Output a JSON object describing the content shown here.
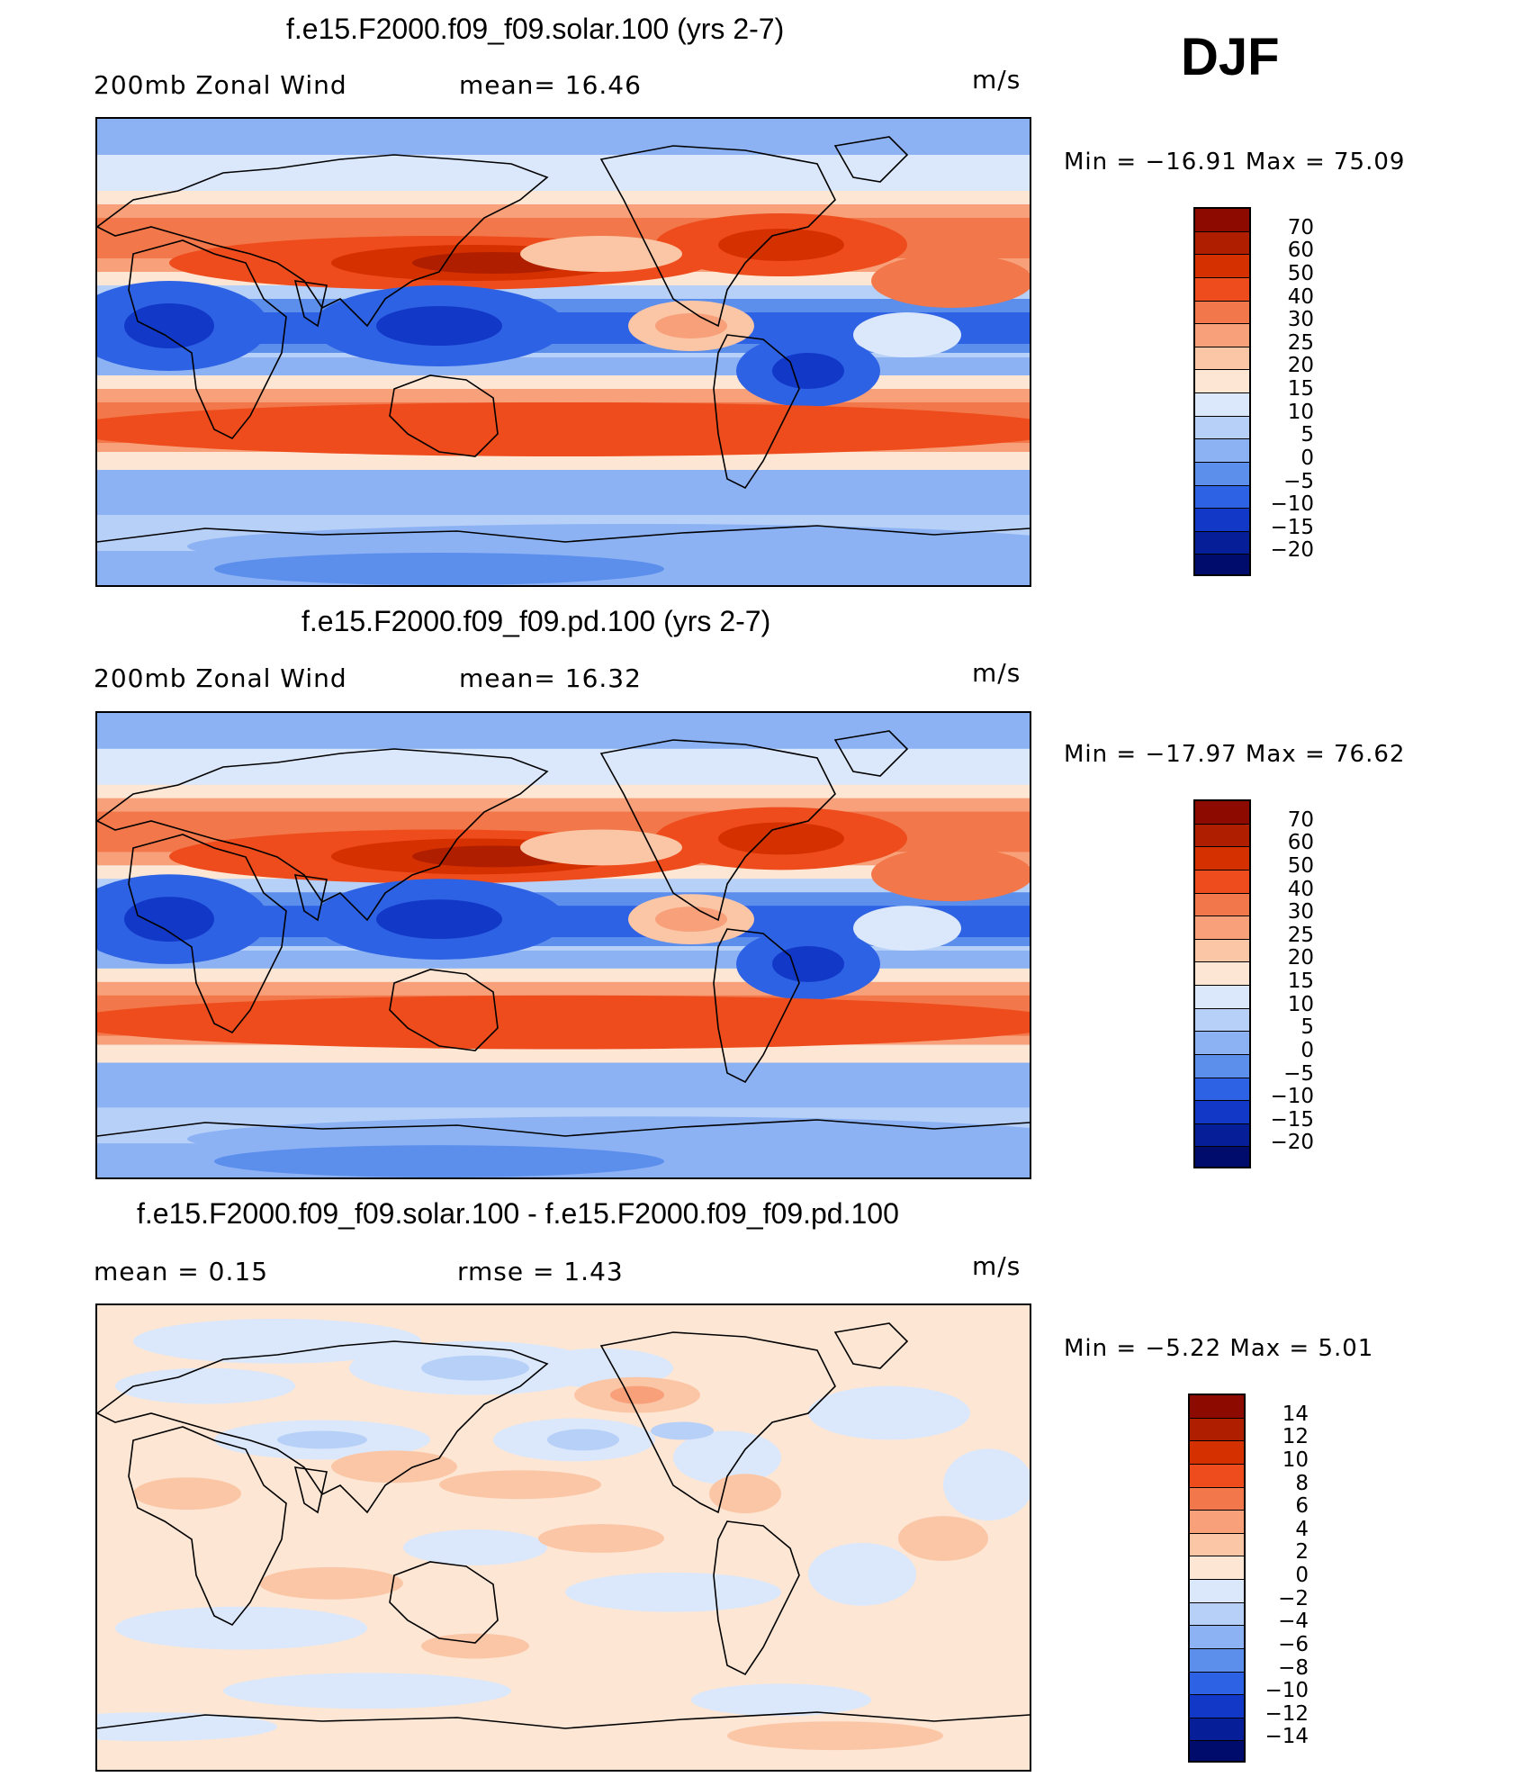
{
  "season": "DJF",
  "chart_data": [
    {
      "type": "heatmap",
      "title": "f.e15.F2000.f09_f09.solar.100 (yrs 2-7)",
      "left_label": "200mb Zonal Wind",
      "center_label": "mean=  16.46",
      "units": "m/s",
      "min_text": "Min  =  −16.91  Max  =    75.09",
      "min": -16.91,
      "max": 75.09,
      "mean": 16.46,
      "levels": [
        "70",
        "60",
        "50",
        "40",
        "30",
        "25",
        "20",
        "15",
        "10",
        "5",
        "0",
        "−5",
        "−10",
        "−15",
        "−20"
      ],
      "colors": [
        "#8c0a00",
        "#b01e00",
        "#d43000",
        "#ee4c1c",
        "#f2774a",
        "#f7a07a",
        "#fbc6a6",
        "#fde6d4",
        "#dbe8fb",
        "#b7d0f8",
        "#8cb2f4",
        "#5c8eec",
        "#2e62e4",
        "#1238c8",
        "#061e98",
        "#000c6c"
      ]
    },
    {
      "type": "heatmap",
      "title": "f.e15.F2000.f09_f09.pd.100 (yrs 2-7)",
      "left_label": "200mb Zonal Wind",
      "center_label": "mean=  16.32",
      "units": "m/s",
      "min_text": "Min  =  −17.97  Max  =    76.62",
      "min": -17.97,
      "max": 76.62,
      "mean": 16.32,
      "levels": [
        "70",
        "60",
        "50",
        "40",
        "30",
        "25",
        "20",
        "15",
        "10",
        "5",
        "0",
        "−5",
        "−10",
        "−15",
        "−20"
      ],
      "colors": [
        "#8c0a00",
        "#b01e00",
        "#d43000",
        "#ee4c1c",
        "#f2774a",
        "#f7a07a",
        "#fbc6a6",
        "#fde6d4",
        "#dbe8fb",
        "#b7d0f8",
        "#8cb2f4",
        "#5c8eec",
        "#2e62e4",
        "#1238c8",
        "#061e98",
        "#000c6c"
      ]
    },
    {
      "type": "heatmap",
      "title": "f.e15.F2000.f09_f09.solar.100 - f.e15.F2000.f09_f09.pd.100",
      "left_label": "mean  =     0.15",
      "center_label": "rmse  =     1.43",
      "units": "m/s",
      "min_text": "Min  =    −5.22  Max  =      5.01",
      "min": -5.22,
      "max": 5.01,
      "mean": 0.15,
      "rmse": 1.43,
      "levels": [
        "14",
        "12",
        "10",
        "8",
        "6",
        "4",
        "2",
        "0",
        "−2",
        "−4",
        "−6",
        "−8",
        "−10",
        "−12",
        "−14"
      ],
      "colors": [
        "#8c0a00",
        "#b01e00",
        "#d43000",
        "#ee4c1c",
        "#f2774a",
        "#f7a07a",
        "#fbc6a6",
        "#fde6d4",
        "#dbe8fb",
        "#b7d0f8",
        "#8cb2f4",
        "#5c8eec",
        "#2e62e4",
        "#1238c8",
        "#061e98",
        "#000c6c"
      ]
    }
  ]
}
